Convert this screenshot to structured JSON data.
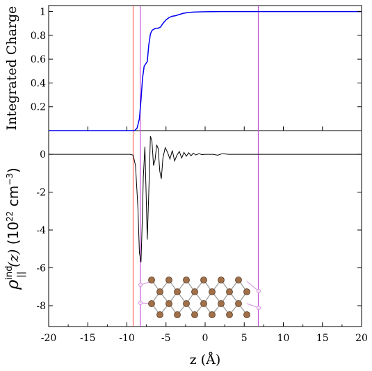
{
  "chart_data": [
    {
      "type": "line",
      "panel": "top",
      "ylabel": "Integrated Charge",
      "xlim": [
        -20,
        20
      ],
      "ylim": [
        0,
        1.05
      ],
      "yticks": [
        0.2,
        0.4,
        0.6,
        0.8,
        1
      ],
      "ytick_labels": [
        "0.2",
        "0.4",
        "0.6",
        "0.8",
        "1"
      ],
      "series": [
        {
          "color": "#0000ee",
          "x": [
            -20,
            -9.3,
            -9.0,
            -8.7,
            -8.4,
            -8.2,
            -8.0,
            -7.8,
            -7.6,
            -7.4,
            -7.2,
            -7.0,
            -6.8,
            -6.6,
            -6.3,
            -6.0,
            -5.7,
            -5.4,
            -5.0,
            -4.6,
            -4.2,
            -3.8,
            -3.3,
            -2.8,
            -2.3,
            -1.5,
            0,
            2,
            5,
            10,
            20
          ],
          "y": [
            0,
            0,
            0.002,
            0.02,
            0.1,
            0.26,
            0.44,
            0.54,
            0.56,
            0.58,
            0.72,
            0.81,
            0.84,
            0.85,
            0.86,
            0.86,
            0.87,
            0.9,
            0.93,
            0.95,
            0.96,
            0.965,
            0.975,
            0.985,
            0.99,
            0.995,
            0.998,
            1,
            1,
            1,
            1
          ]
        }
      ]
    },
    {
      "type": "line",
      "panel": "bottom",
      "xlabel": "z (Å)",
      "xlim": [
        -20,
        20
      ],
      "ylim": [
        -9.1,
        1.25
      ],
      "xticks": [
        -20,
        -15,
        -10,
        -5,
        0,
        5,
        10,
        15,
        20
      ],
      "xtick_labels": [
        "-20",
        "-15",
        "-10",
        "-5",
        "0",
        "5",
        "10",
        "15",
        "20"
      ],
      "yticks": [
        0,
        -2,
        -4,
        -6,
        -8
      ],
      "ytick_labels": [
        "0",
        "-2",
        "-4",
        "-6",
        "-8"
      ],
      "series": [
        {
          "color": "#000000",
          "x": [
            -20,
            -9.6,
            -9.2,
            -8.9,
            -8.6,
            -8.4,
            -8.2,
            -8.0,
            -7.9,
            -7.7,
            -7.55,
            -7.4,
            -7.2,
            -7.0,
            -6.8,
            -6.6,
            -6.4,
            -6.2,
            -6.0,
            -5.8,
            -5.6,
            -5.4,
            -5.1,
            -4.8,
            -4.5,
            -4.2,
            -3.9,
            -3.6,
            -3.3,
            -3.0,
            -2.7,
            -2.4,
            -2.1,
            -1.8,
            -1.5,
            -1.2,
            -0.8,
            -0.4,
            0,
            1,
            1.6,
            2.2,
            3,
            20
          ],
          "y": [
            0,
            0,
            -0.05,
            -0.6,
            -2.8,
            -5.2,
            -5.7,
            -3.0,
            -1.2,
            0.4,
            -2.0,
            -4.5,
            -2.0,
            0.95,
            0.7,
            -0.6,
            -0.3,
            0.5,
            0.3,
            -0.9,
            -1.3,
            -0.2,
            0.35,
            0.1,
            -0.25,
            0.2,
            -0.35,
            -0.05,
            0.15,
            -0.2,
            0.1,
            -0.1,
            0.08,
            -0.08,
            0.06,
            -0.04,
            0.03,
            -0.02,
            0,
            0,
            -0.05,
            0.03,
            0,
            0
          ]
        }
      ]
    }
  ],
  "labels": {
    "top_ylabel": "Integrated Charge",
    "xlabel": "z (Å)",
    "ylabel_rho": "ρ",
    "ylabel_sub": "||",
    "ylabel_sup": "ind",
    "ylabel_z": "(z)",
    "ylabel_units_open": " (10",
    "ylabel_units_exp": "22",
    "ylabel_units_mid": " cm",
    "ylabel_units_exp2": "−3",
    "ylabel_units_close": ")"
  },
  "reference_lines": [
    {
      "x": -9.2,
      "color": "#ff6f5f"
    },
    {
      "x": -8.3,
      "color": "#c34ed8"
    },
    {
      "x": 6.8,
      "color": "#c34ed8"
    }
  ],
  "colors": {
    "atom_fill": "#a0704a",
    "atom_edge": "#5a3920",
    "bond": "#999999",
    "hydrogen_edge": "#d591e0",
    "hydrogen_fill": "#f4e6f7"
  }
}
